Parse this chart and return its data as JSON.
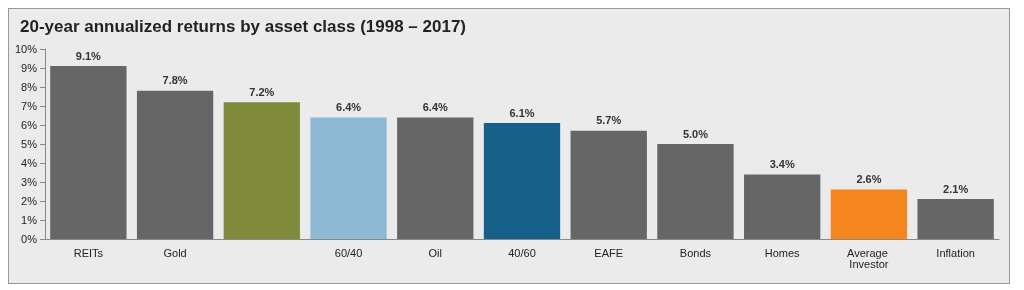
{
  "chart_data": {
    "type": "bar",
    "title": "20-year annualized returns by asset class (1998 – 2017)",
    "categories": [
      "REITs",
      "Gold",
      null,
      "60/40",
      "Oil",
      "40/60",
      "EAFE",
      "Bonds",
      "Homes",
      "Average Investor",
      "Inflation"
    ],
    "values": [
      9.1,
      7.8,
      7.2,
      6.4,
      6.4,
      6.1,
      5.7,
      5.0,
      3.4,
      2.6,
      2.1
    ],
    "value_labels": [
      "9.1%",
      "7.8%",
      "7.2%",
      "6.4%",
      "6.4%",
      "6.1%",
      "5.7%",
      "5.0%",
      "3.4%",
      "2.6%",
      "2.1%"
    ],
    "colors": [
      "#666666",
      "#666666",
      "#7f8b3b",
      "#8db9d5",
      "#666666",
      "#156189",
      "#666666",
      "#666666",
      "#666666",
      "#f5861f",
      "#666666"
    ],
    "ylim": [
      0,
      10
    ],
    "yticks": [
      {
        "value": 0,
        "label": "0%"
      },
      {
        "value": 1,
        "label": "1%"
      },
      {
        "value": 2,
        "label": "2%"
      },
      {
        "value": 3,
        "label": "3%"
      },
      {
        "value": 4,
        "label": "4%"
      },
      {
        "value": 5,
        "label": "5%"
      },
      {
        "value": 6,
        "label": "6%"
      },
      {
        "value": 7,
        "label": "7%"
      },
      {
        "value": 8,
        "label": "8%"
      },
      {
        "value": 9,
        "label": "9%"
      },
      {
        "value": 10,
        "label": "10%"
      }
    ],
    "grid": false
  }
}
